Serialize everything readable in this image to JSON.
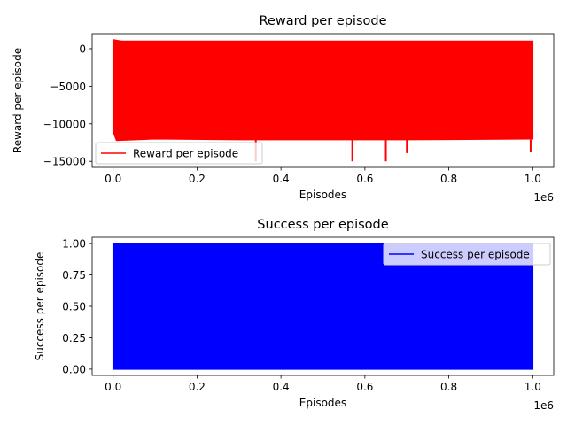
{
  "chart_data": [
    {
      "type": "line",
      "title": "Reward per episode",
      "xlabel": "Episodes",
      "ylabel": "Reward per episode",
      "x_offset_label": "1e6",
      "xlim": [
        -50000,
        1050000
      ],
      "ylim": [
        -15800,
        2000
      ],
      "x_ticks": [
        0,
        200000,
        400000,
        600000,
        800000,
        1000000
      ],
      "x_tick_labels": [
        "0.0",
        "0.2",
        "0.4",
        "0.6",
        "0.8",
        "1.0"
      ],
      "y_ticks": [
        0,
        -5000,
        -10000,
        -15000
      ],
      "y_tick_labels": [
        "0",
        "−5000",
        "−10000",
        "−15000"
      ],
      "grid": false,
      "legend_position": "lower-left",
      "series": [
        {
          "name": "Reward per episode",
          "color": "#ff0000",
          "x_range": [
            0,
            1000000
          ],
          "band_upper": [
            [
              0,
              1200
            ],
            [
              8000,
              1100
            ],
            [
              20000,
              1000
            ],
            [
              1000000,
              1000
            ]
          ],
          "band_lower": [
            [
              0,
              -11000
            ],
            [
              8000,
              -12200
            ],
            [
              100000,
              -12000
            ],
            [
              300000,
              -12100
            ],
            [
              500000,
              -12100
            ],
            [
              700000,
              -12100
            ],
            [
              1000000,
              -12000
            ]
          ],
          "spikes": [
            [
              340000,
              -15000
            ],
            [
              570000,
              -15000
            ],
            [
              650000,
              -15000
            ],
            [
              700000,
              -13900
            ],
            [
              995000,
              -13800
            ]
          ]
        }
      ]
    },
    {
      "type": "line",
      "title": "Success per episode",
      "xlabel": "Episodes",
      "ylabel": "Success per episode",
      "x_offset_label": "1e6",
      "xlim": [
        -50000,
        1050000
      ],
      "ylim": [
        -0.05,
        1.05
      ],
      "x_ticks": [
        0,
        200000,
        400000,
        600000,
        800000,
        1000000
      ],
      "x_tick_labels": [
        "0.0",
        "0.2",
        "0.4",
        "0.6",
        "0.8",
        "1.0"
      ],
      "y_ticks": [
        0,
        0.25,
        0.5,
        0.75,
        1.0
      ],
      "y_tick_labels": [
        "0.00",
        "0.25",
        "0.50",
        "0.75",
        "1.00"
      ],
      "grid": false,
      "legend_position": "upper-right",
      "series": [
        {
          "name": "Success per episode",
          "color": "#0000ff",
          "x_range": [
            0,
            1000000
          ],
          "band_upper": [
            [
              0,
              1
            ],
            [
              1000000,
              1
            ]
          ],
          "band_lower": [
            [
              0,
              0
            ],
            [
              1000000,
              0
            ]
          ],
          "spikes": []
        }
      ]
    }
  ]
}
